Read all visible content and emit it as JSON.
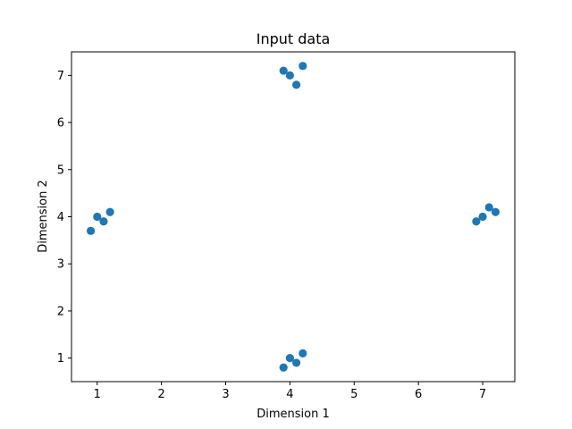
{
  "chart_data": {
    "type": "scatter",
    "title": "Input data",
    "xlabel": "Dimension 1",
    "ylabel": "Dimension 2",
    "xlim": [
      0.6,
      7.5
    ],
    "ylim": [
      0.5,
      7.5
    ],
    "xticks": [
      1,
      2,
      3,
      4,
      5,
      6,
      7
    ],
    "yticks": [
      1,
      2,
      3,
      4,
      5,
      6,
      7
    ],
    "grid": false,
    "series": [
      {
        "color": "#1f77b4",
        "points": [
          {
            "x": 1.0,
            "y": 4.0
          },
          {
            "x": 1.1,
            "y": 3.9
          },
          {
            "x": 1.2,
            "y": 4.1
          },
          {
            "x": 0.9,
            "y": 3.7
          },
          {
            "x": 7.0,
            "y": 4.0
          },
          {
            "x": 7.1,
            "y": 4.2
          },
          {
            "x": 7.2,
            "y": 4.1
          },
          {
            "x": 6.9,
            "y": 3.9
          },
          {
            "x": 4.0,
            "y": 7.0
          },
          {
            "x": 4.2,
            "y": 7.2
          },
          {
            "x": 4.1,
            "y": 6.8
          },
          {
            "x": 3.9,
            "y": 7.1
          },
          {
            "x": 4.0,
            "y": 1.0
          },
          {
            "x": 4.1,
            "y": 0.9
          },
          {
            "x": 4.2,
            "y": 1.1
          },
          {
            "x": 3.9,
            "y": 0.8
          }
        ]
      }
    ]
  }
}
